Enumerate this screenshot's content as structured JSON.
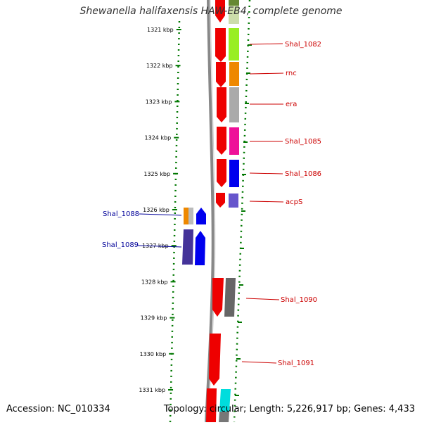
{
  "title": "Shewanella halifaxensis HAW-EB4, complete genome",
  "footer": {
    "accession_label": "Accession:",
    "accession": "NC_010334",
    "topology_label": "Topology:",
    "topology": "circular",
    "length_label": "Length:",
    "length": "5,226,917 bp",
    "genes_label": "Genes:",
    "genes": "4,433"
  },
  "ruler": {
    "ticks": [
      "1321 kbp",
      "1322 kbp",
      "1323 kbp",
      "1324 kbp",
      "1325 kbp",
      "1326 kbp",
      "1327 kbp",
      "1328 kbp",
      "1329 kbp",
      "1330 kbp",
      "1331 kbp"
    ]
  },
  "gene_labels_right": [
    "Shal_1082",
    "rnc",
    "era",
    "Shal_1085",
    "Shal_1086",
    "acpS",
    "Shal_1090",
    "Shal_1091"
  ],
  "gene_labels_left": [
    "Shal_1088",
    "Shal_1089"
  ],
  "colors": {
    "forward_strand": "#ee0000",
    "reverse_strand": "#0000ee",
    "ruler_ticks": "#007700",
    "backbone": "#888888",
    "label_right": "#cc0000",
    "label_left": "#000099",
    "cog_1082": "#99ee22",
    "cog_rnc": "#ee8800",
    "cog_era": "#aaaaaa",
    "cog_1085": "#ee1199",
    "cog_1086": "#0000ee",
    "cog_acps": "#6655cc",
    "cog_1090": "#666666",
    "cog_1091": "#00dddd"
  }
}
